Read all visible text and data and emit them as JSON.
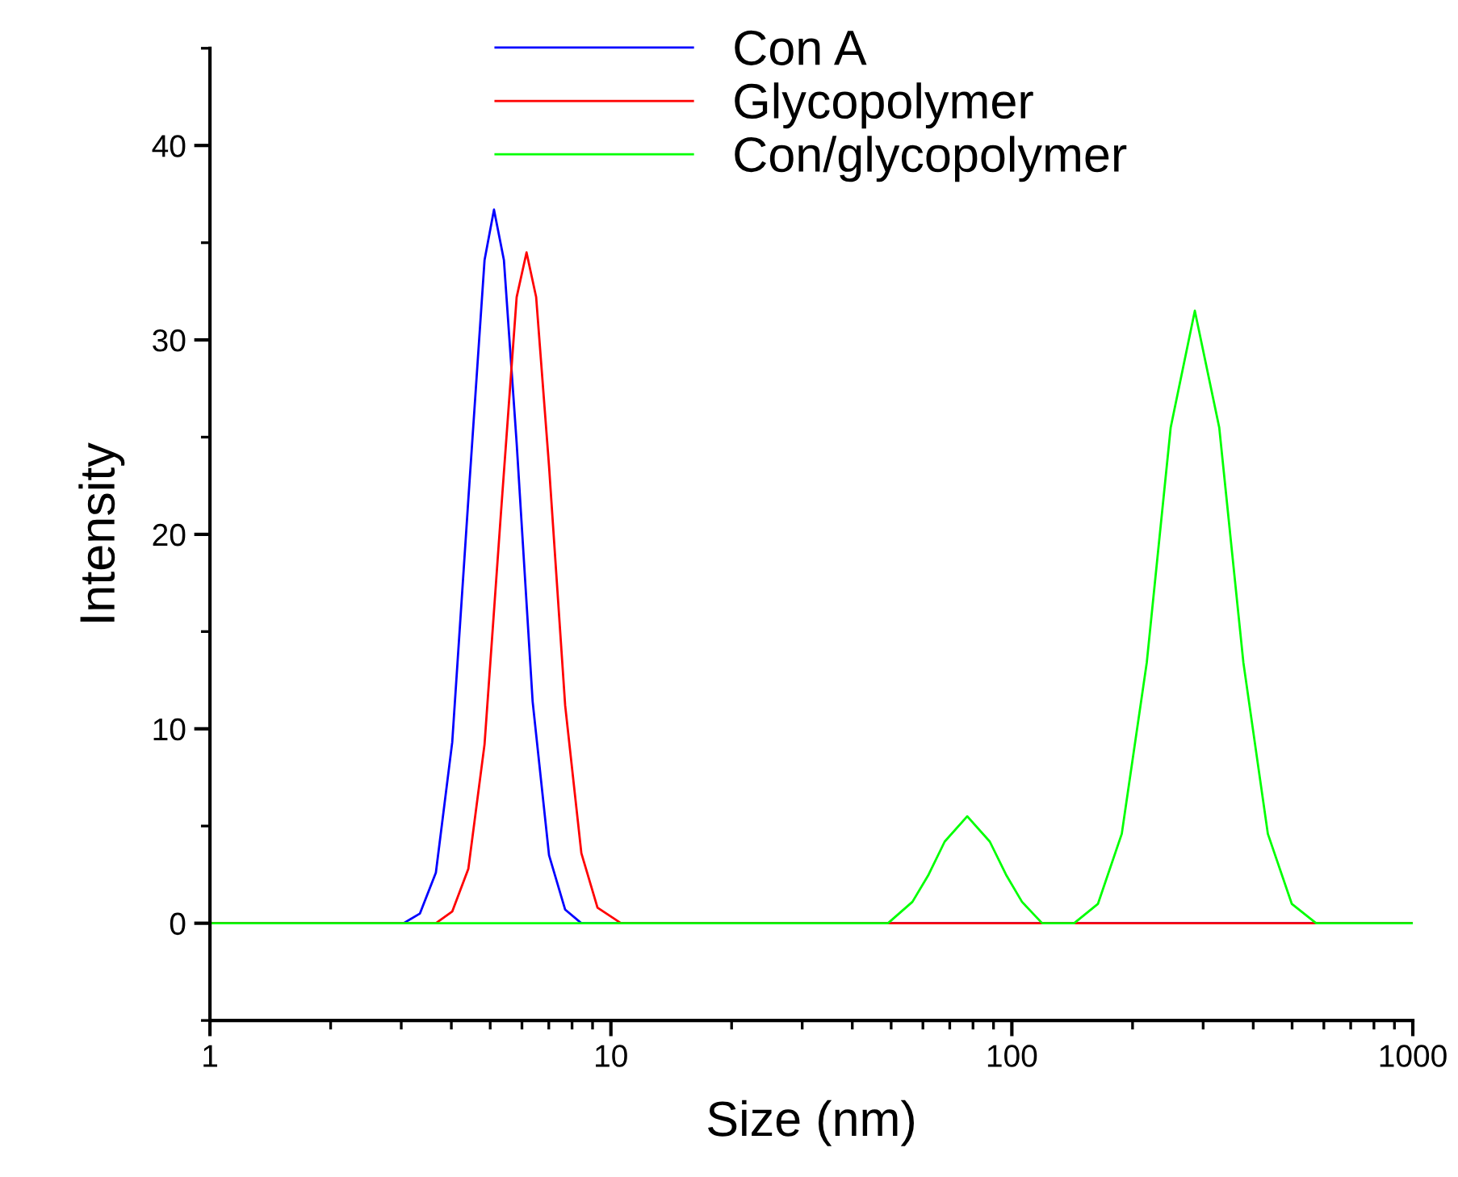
{
  "chart_data": {
    "type": "line",
    "xlabel": "Size (nm)",
    "ylabel": "Intensity",
    "log": "x",
    "xlim": [
      1,
      1000
    ],
    "xticks": [
      1,
      10,
      100,
      1000
    ],
    "ylim": [
      -5,
      45
    ],
    "yticks": [
      0,
      10,
      20,
      30,
      40
    ],
    "grid": false,
    "legend": "top",
    "marker": "none",
    "line_style": "solid",
    "series": [
      {
        "name": "Con A",
        "color": "#0000ff",
        "x": [
          1,
          3.04,
          3.34,
          3.66,
          4.02,
          4.41,
          4.84,
          5.11,
          5.41,
          5.82,
          6.38,
          7.01,
          7.69,
          8.44,
          1000
        ],
        "values": [
          0,
          0,
          0.5,
          2.6,
          9.3,
          21.8,
          34.1,
          36.7,
          34.1,
          24.7,
          11.4,
          3.5,
          0.7,
          0,
          0
        ]
      },
      {
        "name": "Glycopolymer",
        "color": "#ff0000",
        "x": [
          1,
          3.66,
          4.02,
          4.41,
          4.84,
          5.31,
          5.82,
          6.16,
          6.51,
          7.01,
          7.69,
          8.44,
          9.26,
          10.6,
          1000
        ],
        "values": [
          0,
          0,
          0.6,
          2.8,
          9.2,
          20.9,
          32.2,
          34.5,
          32.2,
          23.5,
          11.2,
          3.6,
          0.8,
          0,
          0
        ]
      },
      {
        "name": "Con/glycopolymer",
        "color": "#00ff00",
        "x": [
          1,
          49.1,
          56.5,
          62.0,
          68.0,
          77.4,
          88.1,
          96.7,
          106,
          119,
          143,
          164,
          188,
          217,
          249,
          286,
          329,
          378,
          435,
          499,
          574,
          1000
        ],
        "values": [
          0,
          0,
          1.1,
          2.5,
          4.2,
          5.5,
          4.2,
          2.5,
          1.1,
          0,
          0,
          1.0,
          4.6,
          13.4,
          25.5,
          31.5,
          25.5,
          13.4,
          4.6,
          1.0,
          0,
          0
        ]
      }
    ]
  }
}
